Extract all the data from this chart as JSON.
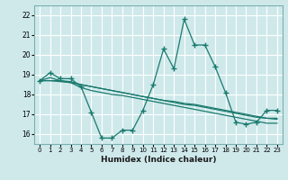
{
  "xlabel": "Humidex (Indice chaleur)",
  "bg_color": "#cfe9eb",
  "grid_color": "#ffffff",
  "line_color": "#1a7a6e",
  "marker_color": "#1a7a6e",
  "xlim": [
    -0.5,
    23.5
  ],
  "ylim": [
    15.5,
    22.5
  ],
  "yticks": [
    16,
    17,
    18,
    19,
    20,
    21,
    22
  ],
  "xtick_labels": [
    "0",
    "1",
    "2",
    "3",
    "4",
    "5",
    "6",
    "7",
    "8",
    "9",
    "10",
    "11",
    "12",
    "13",
    "14",
    "15",
    "16",
    "17",
    "18",
    "19",
    "20",
    "21",
    "22",
    "23"
  ],
  "series": [
    [
      18.7,
      19.1,
      18.8,
      18.8,
      18.4,
      17.1,
      15.8,
      15.8,
      16.2,
      16.2,
      17.2,
      18.5,
      20.3,
      19.3,
      21.8,
      20.5,
      20.5,
      19.4,
      18.1,
      16.6,
      16.5,
      16.6,
      17.2,
      17.2
    ],
    [
      18.7,
      18.7,
      18.7,
      18.65,
      18.5,
      18.4,
      18.3,
      18.2,
      18.1,
      18.0,
      17.9,
      17.8,
      17.7,
      17.65,
      17.55,
      17.5,
      17.4,
      17.3,
      17.2,
      17.1,
      17.0,
      16.9,
      16.8,
      16.75
    ],
    [
      18.7,
      18.7,
      18.65,
      18.6,
      18.5,
      18.4,
      18.3,
      18.2,
      18.1,
      18.0,
      17.9,
      17.8,
      17.7,
      17.6,
      17.5,
      17.45,
      17.35,
      17.25,
      17.15,
      17.05,
      16.95,
      16.85,
      16.8,
      16.8
    ],
    [
      18.7,
      18.85,
      18.7,
      18.6,
      18.35,
      18.2,
      18.1,
      18.0,
      17.95,
      17.85,
      17.75,
      17.65,
      17.55,
      17.45,
      17.35,
      17.25,
      17.15,
      17.05,
      16.95,
      16.85,
      16.75,
      16.65,
      16.55,
      16.55
    ]
  ]
}
